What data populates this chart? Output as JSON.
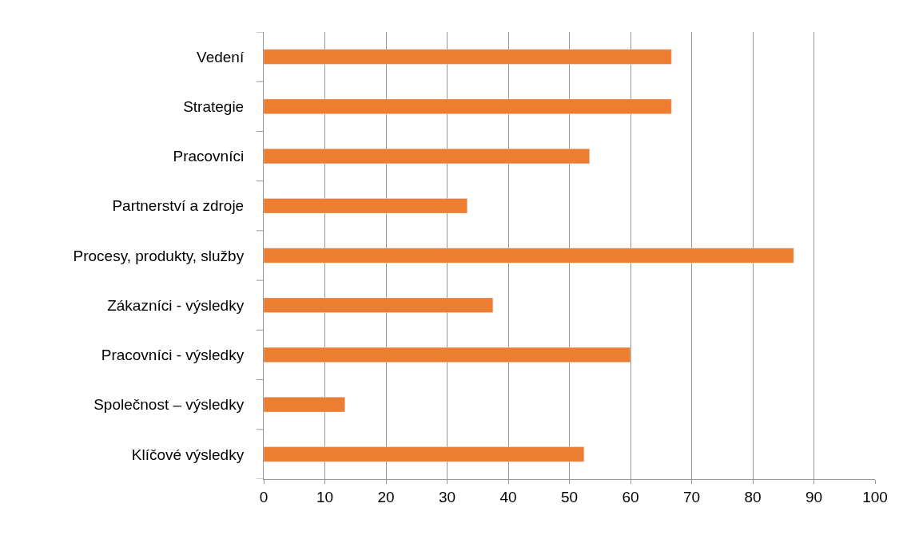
{
  "chart_data": {
    "type": "bar",
    "orientation": "horizontal",
    "categories": [
      "Vedení",
      "Strategie",
      "Pracovníci",
      "Partnerství a zdroje",
      "Procesy, produkty, služby",
      "Zákazníci - výsledky",
      "Pracovníci - výsledky",
      "Společnost – výsledky",
      "Klíčové výsledky"
    ],
    "values": [
      66.7,
      66.7,
      53.3,
      33.3,
      86.7,
      37.5,
      60,
      13.3,
      52.4
    ],
    "color": "#ed7d31",
    "xlim": [
      0,
      100
    ],
    "xticks": [
      0,
      10,
      20,
      30,
      40,
      50,
      60,
      70,
      80,
      90,
      100
    ],
    "grid": "x",
    "legend": false
  }
}
